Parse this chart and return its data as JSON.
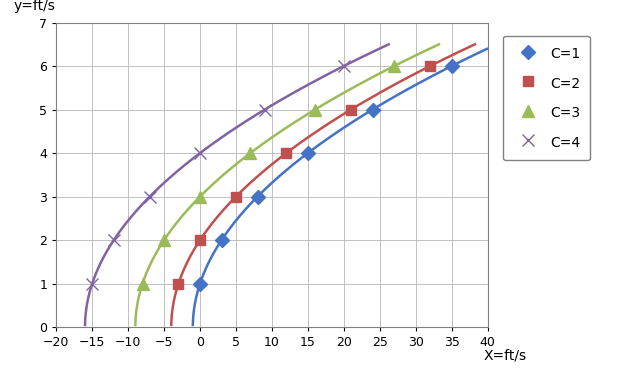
{
  "title": "",
  "xlabel": "X=ft/s",
  "ylabel": "y=ft/s",
  "xlim": [
    -20,
    40
  ],
  "ylim": [
    0,
    7
  ],
  "xticks": [
    -20,
    -15,
    -10,
    -5,
    0,
    5,
    10,
    15,
    20,
    25,
    30,
    35,
    40
  ],
  "yticks": [
    0,
    1,
    2,
    3,
    4,
    5,
    6,
    7
  ],
  "curves": [
    {
      "C": 1,
      "color": "#4472C4",
      "marker": "D",
      "label": "C=1",
      "ms": 7
    },
    {
      "C": 2,
      "color": "#C0504D",
      "marker": "s",
      "label": "C=2",
      "ms": 7
    },
    {
      "C": 3,
      "color": "#9BBB59",
      "marker": "^",
      "label": "C=3",
      "ms": 8
    },
    {
      "C": 4,
      "color": "#8064A2",
      "marker": "x",
      "label": "C=4",
      "ms": 9
    }
  ],
  "y_values": [
    1,
    2,
    3,
    4,
    5,
    6
  ],
  "background_color": "#FFFFFF",
  "grid_color": "#C0C0C0"
}
